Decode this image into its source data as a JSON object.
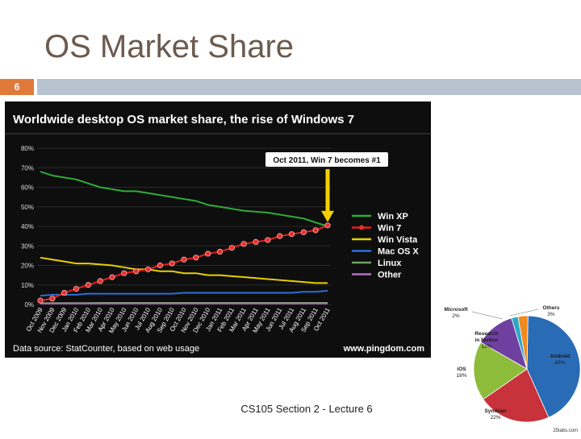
{
  "slide": {
    "title": "OS Market Share",
    "page_number": "6",
    "footer": "CS105 Section 2 - Lecture 6"
  },
  "chart_data": [
    {
      "type": "line",
      "title": "Worldwide desktop OS market share, the rise of Windows 7",
      "annotation": "Oct 2011, Win 7 becomes #1",
      "source": "Data source: StatCounter, based on web usage",
      "credit": "www.pingdom.com",
      "ylim": [
        0,
        80
      ],
      "yticks": [
        "0%",
        "10%",
        "20%",
        "30%",
        "40%",
        "50%",
        "60%",
        "70%",
        "80%"
      ],
      "grid": true,
      "legend_position": "right",
      "x": [
        "Oct 2009",
        "Nov 2009",
        "Dec 2009",
        "Jan 2010",
        "Feb 2010",
        "Mar 2010",
        "Apr 2010",
        "May 2010",
        "Jun 2010",
        "Jul 2010",
        "Aug 2010",
        "Sep 2010",
        "Oct 2010",
        "Nov 2010",
        "Dec 2010",
        "Jan 2011",
        "Feb 2011",
        "Mar 2011",
        "Apr 2011",
        "May 2011",
        "Jun 2011",
        "Jul 2011",
        "Aug 2011",
        "Sep 2011",
        "Oct 2011"
      ],
      "series": [
        {
          "name": "Win XP",
          "color": "#2fae3a",
          "values": [
            68,
            66,
            65,
            64,
            62,
            60,
            59,
            58,
            58,
            57,
            56,
            55,
            54,
            53,
            51,
            50,
            49,
            48,
            47.5,
            47,
            46,
            45,
            44,
            42,
            40
          ]
        },
        {
          "name": "Win 7",
          "color": "#e02020",
          "markers": true,
          "values": [
            2,
            3,
            6,
            8,
            10,
            12,
            14,
            16,
            17,
            18,
            20,
            21,
            23,
            24,
            26,
            27,
            29,
            31,
            32,
            33,
            35,
            36,
            37,
            38,
            40.5
          ]
        },
        {
          "name": "Win Vista",
          "color": "#e8d000",
          "values": [
            24,
            23,
            22,
            21,
            21,
            20.5,
            20,
            19,
            18,
            18,
            17,
            17,
            16,
            16,
            15,
            15,
            14.5,
            14,
            13.5,
            13,
            12.5,
            12,
            11.5,
            11,
            11
          ]
        },
        {
          "name": "Mac OS X",
          "color": "#2a6fd6",
          "values": [
            4.5,
            5,
            5,
            5,
            5.5,
            5.5,
            5.5,
            5.5,
            5.5,
            5.5,
            5.5,
            5.5,
            6,
            6,
            6,
            6,
            6,
            6,
            6,
            6,
            6,
            6,
            6.5,
            6.5,
            7
          ]
        },
        {
          "name": "Linux",
          "color": "#70a060",
          "values": [
            0.7,
            0.7,
            0.7,
            0.7,
            0.7,
            0.8,
            0.8,
            0.8,
            0.8,
            0.8,
            0.8,
            0.8,
            0.8,
            0.8,
            0.8,
            0.8,
            0.8,
            0.8,
            0.8,
            0.8,
            0.8,
            0.8,
            0.8,
            0.8,
            0.8
          ]
        },
        {
          "name": "Other",
          "color": "#b070c0",
          "values": [
            0.5,
            0.5,
            0.5,
            0.5,
            0.5,
            0.5,
            0.5,
            0.5,
            0.5,
            0.5,
            0.5,
            0.5,
            0.5,
            0.5,
            0.5,
            0.5,
            0.5,
            0.5,
            0.5,
            0.5,
            0.5,
            0.5,
            0.5,
            0.5,
            0.5
          ]
        }
      ]
    },
    {
      "type": "pie",
      "credit": "25labs.com",
      "slices": [
        {
          "label": "Android",
          "value_label": "43%",
          "value": 43,
          "color": "#2a6bb5"
        },
        {
          "label": "Symbian",
          "value_label": "22%",
          "value": 22,
          "color": "#c8323a"
        },
        {
          "label": "iOS",
          "value_label": "18%",
          "value": 18,
          "color": "#8dbb3a"
        },
        {
          "label": "Research in Motion",
          "value_label": "12%",
          "value": 12,
          "color": "#7040a0"
        },
        {
          "label": "Microsoft",
          "value_label": "2%",
          "value": 2,
          "color": "#2aa8c8"
        },
        {
          "label": "Others",
          "value_label": "3%",
          "value": 3,
          "color": "#f08a20"
        }
      ]
    }
  ]
}
